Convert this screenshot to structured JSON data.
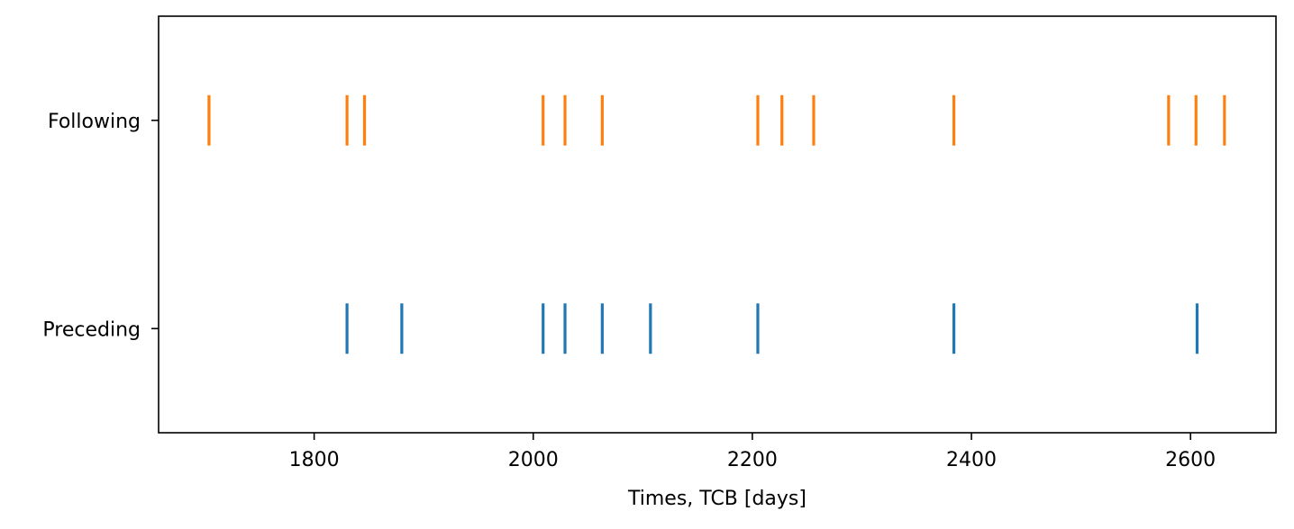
{
  "chart_data": {
    "type": "scatter",
    "title": "",
    "xlabel": "Times, TCB [days]",
    "ylabel": "",
    "xlim": [
      1658,
      2678
    ],
    "ylim": [
      -0.5,
      1.5
    ],
    "xticks": [
      1800,
      2000,
      2200,
      2400,
      2600
    ],
    "xtick_labels": [
      "1800",
      "2000",
      "2200",
      "2400",
      "2600"
    ],
    "categories": [
      "Preceding",
      "Following"
    ],
    "grid": false,
    "legend": "none",
    "series": [
      {
        "category": "Preceding",
        "color": "#1f77b4",
        "x": [
          1830,
          1880,
          2009,
          2029,
          2063,
          2107,
          2205,
          2384,
          2606
        ]
      },
      {
        "category": "Following",
        "color": "#ff7f0e",
        "x": [
          1704,
          1830,
          1846,
          2009,
          2029,
          2063,
          2205,
          2227,
          2256,
          2384,
          2580,
          2605,
          2631
        ]
      }
    ]
  }
}
